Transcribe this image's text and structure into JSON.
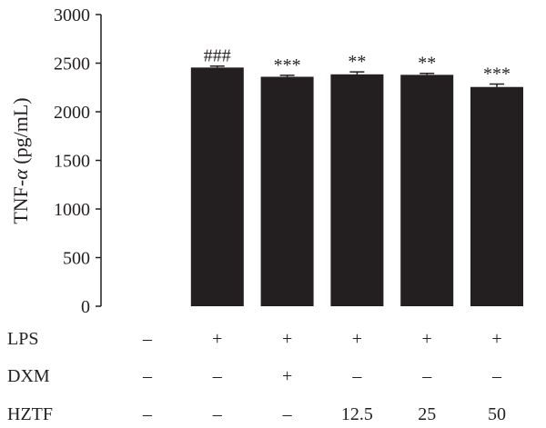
{
  "chart_data": {
    "type": "bar",
    "ylabel_prefix": "TNF-",
    "ylabel_symbol": "α",
    "ylabel_suffix": " (pg/mL)",
    "ylim": [
      0,
      3000
    ],
    "yticks": [
      0,
      500,
      1000,
      1500,
      2000,
      2500,
      3000
    ],
    "grid": false,
    "bar_color": "#231f20",
    "values": [
      0,
      2455,
      2360,
      2385,
      2380,
      2255
    ],
    "errors": [
      0,
      15,
      15,
      25,
      15,
      30
    ],
    "annotations": [
      "",
      "###",
      "***",
      "**",
      "**",
      "***"
    ],
    "treatment_table": [
      {
        "label": "LPS",
        "cells": [
          "–",
          "+",
          "+",
          "+",
          "+",
          "+"
        ]
      },
      {
        "label": "DXM",
        "cells": [
          "–",
          "–",
          "+",
          "–",
          "–",
          "–"
        ]
      },
      {
        "label": "HZTF",
        "cells": [
          "–",
          "–",
          "–",
          "12.5",
          "25",
          "50"
        ]
      }
    ]
  }
}
